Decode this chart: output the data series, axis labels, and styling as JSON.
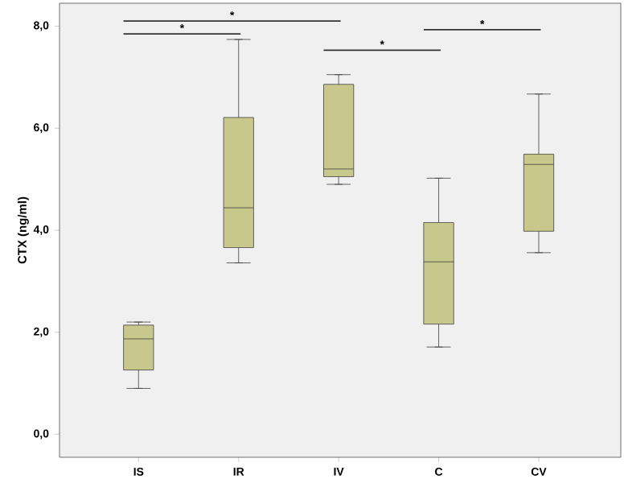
{
  "chart_data": {
    "type": "box",
    "ylabel": "CTX (ng/ml)",
    "categories": [
      "IS",
      "IR",
      "IV",
      "C",
      "CV"
    ],
    "color": "#c8c88c",
    "ylim": [
      -0.45,
      8.45
    ],
    "yticks": [
      {
        "value": 0,
        "label": "0,0"
      },
      {
        "value": 2,
        "label": "2,0"
      },
      {
        "value": 4,
        "label": "4,0"
      },
      {
        "value": 6,
        "label": "6,0"
      },
      {
        "value": 8,
        "label": "8,0"
      }
    ],
    "boxes": [
      {
        "low": 0.9,
        "q1": 1.26,
        "median": 1.87,
        "q3": 2.14,
        "high": 2.2
      },
      {
        "low": 3.36,
        "q1": 3.66,
        "median": 4.44,
        "q3": 6.21,
        "high": 7.74
      },
      {
        "low": 4.9,
        "q1": 5.05,
        "median": 5.2,
        "q3": 6.86,
        "high": 7.05
      },
      {
        "low": 1.71,
        "q1": 2.16,
        "median": 3.38,
        "q3": 4.15,
        "high": 5.02
      },
      {
        "low": 3.56,
        "q1": 3.98,
        "median": 5.29,
        "q3": 5.49,
        "high": 6.67
      }
    ],
    "annotations": [
      "*",
      "*",
      "*",
      "*"
    ]
  }
}
